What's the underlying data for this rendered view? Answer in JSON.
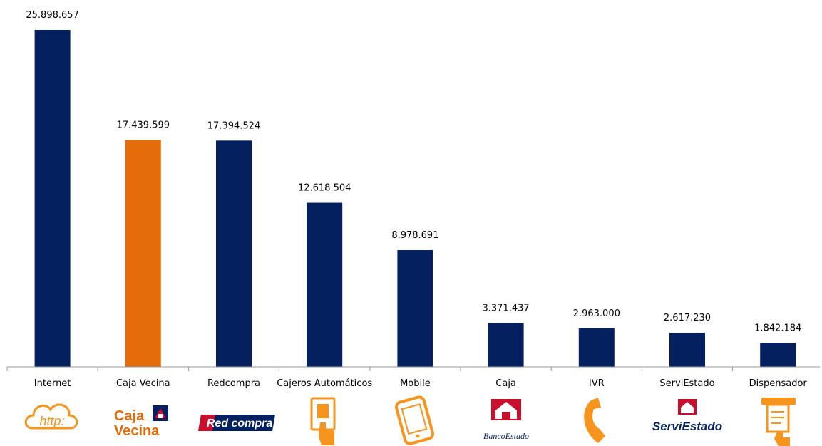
{
  "colors": {
    "primary": "#04205f",
    "highlight": "#e46c0a",
    "axis": "#9a9a9a",
    "icon_orange": "#f7941d",
    "logo_red": "#c8102e"
  },
  "logos": {
    "caja_vecina": {
      "line1": "Caja",
      "line2": "Vecina"
    },
    "redcompra": {
      "text": "Red compra"
    },
    "bancoestado": {
      "text": "BancoEstado"
    },
    "serviestado": {
      "text": "ServiEstado"
    },
    "http": {
      "text": "http:"
    }
  },
  "chart_data": {
    "type": "bar",
    "title": "",
    "xlabel": "",
    "ylabel": "",
    "ylim": [
      0,
      26500000
    ],
    "grid": false,
    "legend": "none",
    "categories": [
      "Internet",
      "Caja Vecina",
      "Redcompra",
      "Cajeros Automáticos",
      "Mobile",
      "Caja",
      "IVR",
      "ServiEstado",
      "Dispensador"
    ],
    "values": [
      25898657,
      17439599,
      17394524,
      12618504,
      8978691,
      3371437,
      2963000,
      2617230,
      1842184
    ],
    "value_labels": [
      "25.898.657",
      "17.439.599",
      "17.394.524",
      "12.618.504",
      "8.978.691",
      "3.371.437",
      "2.963.000",
      "2.617.230",
      "1.842.184"
    ],
    "bar_colors": [
      "#04205f",
      "#e46c0a",
      "#04205f",
      "#04205f",
      "#04205f",
      "#04205f",
      "#04205f",
      "#04205f",
      "#04205f"
    ],
    "icons": [
      "http-icon",
      "caja-vecina-logo-icon",
      "redcompra-logo-icon",
      "atm-hand-icon",
      "mobile-phone-icon",
      "bancoestado-logo-icon",
      "phone-handset-icon",
      "serviestado-logo-icon",
      "ticket-dispenser-icon"
    ]
  }
}
